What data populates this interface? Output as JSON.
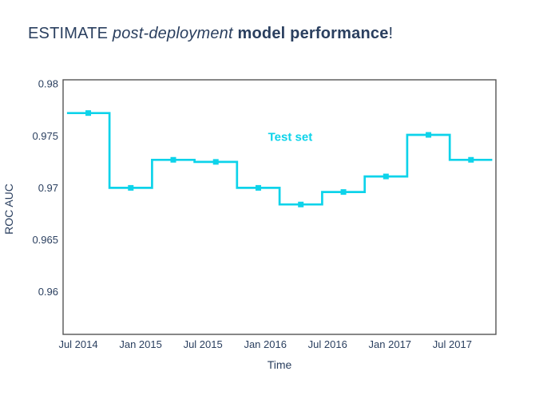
{
  "title": {
    "estimate": "ESTIMATE ",
    "post_deployment": "post-deployment ",
    "model_performance": "model performance",
    "exclamation": "!"
  },
  "colors": {
    "accent_cyan": "#0dd3ea",
    "navy_text": "#2a3f5f",
    "plot_border": "#545454",
    "background": "#ffffff"
  },
  "chart_data": {
    "type": "line",
    "line_shape": "step-centered-hv",
    "marker": "square",
    "title": "ESTIMATE post-deployment model performance!",
    "xlabel": "Time",
    "ylabel": "ROC AUC",
    "xlim": [
      2014.378,
      2017.85
    ],
    "ylim": [
      0.9559,
      0.9804
    ],
    "grid": false,
    "legend_position": "none",
    "series": [
      {
        "name": "Test set",
        "x": [
          2014.58,
          2014.921,
          2015.262,
          2015.603,
          2015.944,
          2016.285,
          2016.627,
          2016.968,
          2017.309,
          2017.65
        ],
        "x_dates_approx": [
          "2014-08",
          "2014-12",
          "2015-04",
          "2015-08",
          "2015-12",
          "2016-04",
          "2016-08",
          "2016-12",
          "2017-05",
          "2017-09"
        ],
        "y": [
          0.9772,
          0.97,
          0.9727,
          0.9725,
          0.97,
          0.9684,
          0.9696,
          0.9711,
          0.9751,
          0.9727
        ]
      }
    ],
    "annotation": {
      "text": "Test set",
      "x": 2016.2,
      "y": 0.9749
    },
    "x_ticks": [
      {
        "value": 2014.5,
        "label": "Jul 2014"
      },
      {
        "value": 2015.0,
        "label": "Jan 2015"
      },
      {
        "value": 2015.5,
        "label": "Jul 2015"
      },
      {
        "value": 2016.0,
        "label": "Jan 2016"
      },
      {
        "value": 2016.5,
        "label": "Jul 2016"
      },
      {
        "value": 2017.0,
        "label": "Jan 2017"
      },
      {
        "value": 2017.5,
        "label": "Jul 2017"
      }
    ],
    "y_ticks": [
      {
        "value": 0.98,
        "label": "0.98"
      },
      {
        "value": 0.975,
        "label": "0.975"
      },
      {
        "value": 0.97,
        "label": "0.97"
      },
      {
        "value": 0.965,
        "label": "0.965"
      },
      {
        "value": 0.96,
        "label": "0.96"
      }
    ]
  }
}
